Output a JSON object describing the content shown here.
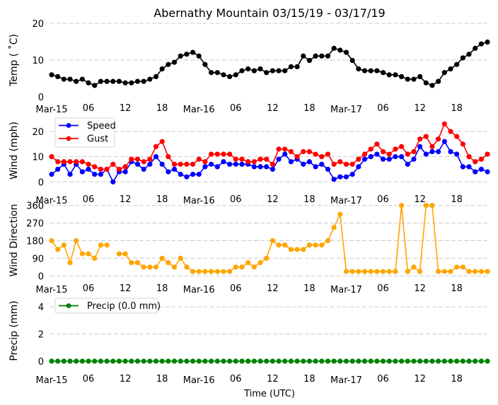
{
  "chart_data": {
    "title": "Abernathy Mountain 03/15/19 - 03/17/19",
    "xlabel": "Time (UTC)",
    "x_hours": 72,
    "x_unit": "hour since Mar-15 00:00 UTC",
    "x_ticks": [
      {
        "hour": 0,
        "label": "Mar-15",
        "major": true
      },
      {
        "hour": 6,
        "label": "06",
        "major": false
      },
      {
        "hour": 12,
        "label": "12",
        "major": false
      },
      {
        "hour": 18,
        "label": "18",
        "major": false
      },
      {
        "hour": 24,
        "label": "Mar-16",
        "major": true
      },
      {
        "hour": 30,
        "label": "06",
        "major": false
      },
      {
        "hour": 36,
        "label": "12",
        "major": false
      },
      {
        "hour": 42,
        "label": "18",
        "major": false
      },
      {
        "hour": 48,
        "label": "Mar-17",
        "major": true
      },
      {
        "hour": 54,
        "label": "06",
        "major": false
      },
      {
        "hour": 60,
        "label": "12",
        "major": false
      },
      {
        "hour": 66,
        "label": "18",
        "major": false
      }
    ],
    "panels": [
      {
        "id": "temp",
        "type": "line",
        "ylabel": "Temp ($^\\circ$C)",
        "ylabel_display": "Temp ( ˚C)",
        "ylim": [
          0,
          20
        ],
        "yticks": [
          0,
          10,
          20
        ],
        "grid": [
          10,
          20
        ],
        "legend": null,
        "series": [
          {
            "name": "Temp",
            "color": "#000000",
            "values": [
              6.0,
              5.5,
              4.8,
              4.8,
              4.2,
              4.8,
              3.8,
              3.1,
              4.2,
              4.2,
              4.2,
              4.2,
              3.8,
              3.8,
              4.2,
              4.2,
              4.8,
              5.5,
              7.6,
              8.8,
              9.4,
              11.1,
              11.6,
              12.1,
              11.1,
              8.8,
              6.6,
              6.6,
              6.0,
              5.5,
              6.0,
              7.1,
              7.6,
              7.1,
              7.6,
              6.6,
              7.1,
              7.1,
              7.1,
              8.2,
              8.2,
              11.1,
              9.9,
              11.1,
              11.1,
              11.1,
              13.2,
              12.7,
              12.1,
              9.9,
              7.6,
              7.1,
              7.1,
              7.1,
              6.6,
              6.0,
              6.0,
              5.5,
              4.8,
              4.8,
              5.5,
              3.8,
              3.1,
              4.2,
              6.6,
              7.6,
              8.8,
              10.6,
              11.6,
              13.2,
              14.4,
              14.9
            ]
          }
        ]
      },
      {
        "id": "wind",
        "type": "line",
        "ylabel": "Wind (mph)",
        "ylim": [
          0,
          25
        ],
        "yticks": [
          0,
          10,
          20
        ],
        "grid": [
          0,
          10,
          20
        ],
        "legend": "upper-left",
        "series": [
          {
            "name": "Speed",
            "color": "#0000ff",
            "values": [
              3,
              5,
              7,
              3,
              7,
              4,
              5,
              3,
              3,
              5,
              0,
              4,
              4,
              8,
              7,
              5,
              7,
              10,
              7,
              4,
              5,
              3,
              2,
              3,
              3,
              6,
              7,
              6,
              8,
              7,
              7,
              7,
              7,
              6,
              6,
              6,
              5,
              9,
              11,
              8,
              9,
              7,
              8,
              6,
              7,
              5,
              1,
              2,
              2,
              3,
              6,
              9,
              10,
              11,
              9,
              9,
              10,
              10,
              7,
              9,
              14,
              11,
              12,
              12,
              16,
              12,
              11,
              6,
              6,
              4,
              5,
              4
            ]
          },
          {
            "name": "Gust",
            "color": "#ff0000",
            "values": [
              10,
              8,
              8,
              8,
              8,
              8,
              7,
              6,
              5,
              5,
              7,
              5,
              6,
              9,
              9,
              8,
              9,
              14,
              16,
              10,
              7,
              7,
              7,
              7,
              9,
              8,
              11,
              11,
              11,
              11,
              9,
              9,
              8,
              8,
              9,
              9,
              7,
              13,
              13,
              12,
              10,
              12,
              12,
              11,
              10,
              11,
              7,
              8,
              7,
              7,
              9,
              11,
              13,
              15,
              12,
              11,
              13,
              14,
              11,
              12,
              17,
              18,
              14,
              17,
              23,
              20,
              18,
              15,
              10,
              8,
              9,
              11
            ]
          }
        ]
      },
      {
        "id": "direction",
        "type": "line",
        "ylabel": "Wind Direction",
        "ylim": [
          0,
          360
        ],
        "yticks": [
          0,
          90,
          180,
          270,
          360
        ],
        "grid": [
          0,
          90,
          180,
          270,
          360
        ],
        "legend": null,
        "series": [
          {
            "name": "Direction",
            "color": "#ffa500",
            "values": [
              180,
              135,
              157.5,
              67.5,
              180,
              112.5,
              112.5,
              90,
              157.5,
              157.5,
              null,
              112.5,
              112.5,
              67.5,
              67.5,
              45,
              45,
              45,
              90,
              67.5,
              45,
              90,
              45,
              22.5,
              22.5,
              22.5,
              22.5,
              22.5,
              22.5,
              22.5,
              45,
              45,
              67.5,
              45,
              67.5,
              90,
              180,
              157.5,
              157.5,
              135,
              135,
              135,
              157.5,
              157.5,
              157.5,
              180,
              247.5,
              315,
              22.5,
              22.5,
              22.5,
              22.5,
              22.5,
              22.5,
              22.5,
              22.5,
              22.5,
              360,
              22.5,
              45,
              22.5,
              360,
              360,
              22.5,
              22.5,
              22.5,
              45,
              45,
              22.5,
              22.5,
              22.5,
              22.5
            ]
          }
        ]
      },
      {
        "id": "precip",
        "type": "line",
        "ylabel": "Precip (mm)",
        "ylim": [
          0,
          5
        ],
        "yticks": [
          0,
          2,
          4
        ],
        "grid": [
          0,
          2,
          4
        ],
        "legend": "upper-left",
        "series": [
          {
            "name": "Precip (0.0 mm)",
            "color": "#008000",
            "values": [
              0,
              0,
              0,
              0,
              0,
              0,
              0,
              0,
              0,
              0,
              0,
              0,
              0,
              0,
              0,
              0,
              0,
              0,
              0,
              0,
              0,
              0,
              0,
              0,
              0,
              0,
              0,
              0,
              0,
              0,
              0,
              0,
              0,
              0,
              0,
              0,
              0,
              0,
              0,
              0,
              0,
              0,
              0,
              0,
              0,
              0,
              0,
              0,
              0,
              0,
              0,
              0,
              0,
              0,
              0,
              0,
              0,
              0,
              0,
              0,
              0,
              0,
              0,
              0,
              0,
              0,
              0,
              0,
              0,
              0,
              0,
              0
            ]
          }
        ]
      }
    ]
  }
}
